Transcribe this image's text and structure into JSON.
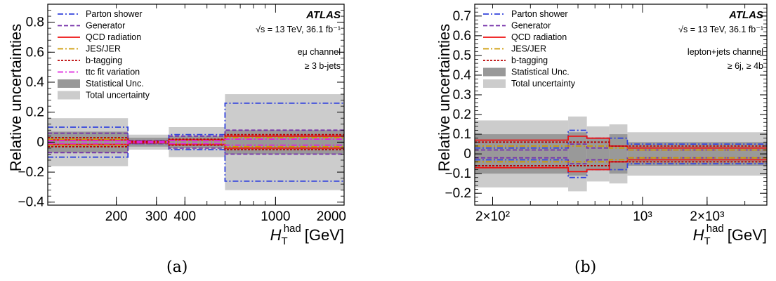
{
  "figure": {
    "caption_a": "(a)",
    "caption_b": "(b)"
  },
  "chart_data": [
    {
      "type": "band",
      "panel": "a",
      "caption": "(a)",
      "ylabel": "Relative uncertainties",
      "xlabel_main": "H",
      "xlabel_sub": "T",
      "xlabel_sup": "had",
      "xlabel_unit": "[GeV]",
      "xscale": "log",
      "xlim": [
        100,
        2000
      ],
      "ylim": [
        -0.42,
        0.92
      ],
      "x_ticks": [
        {
          "v": 200,
          "label": "200"
        },
        {
          "v": 300,
          "label": "300"
        },
        {
          "v": 400,
          "label": "400"
        },
        {
          "v": 1000,
          "label": "1000"
        },
        {
          "v": 2000,
          "label": "2000"
        }
      ],
      "y_ticks": [
        {
          "v": -0.4,
          "label": "−0.4"
        },
        {
          "v": -0.2,
          "label": "−0.2"
        },
        {
          "v": 0,
          "label": "0"
        },
        {
          "v": 0.2,
          "label": "0.2"
        },
        {
          "v": 0.4,
          "label": "0.4"
        },
        {
          "v": 0.6,
          "label": "0.6"
        },
        {
          "v": 0.8,
          "label": "0.8"
        }
      ],
      "bin_edges": [
        100,
        225,
        340,
        600,
        2000
      ],
      "total_unc": [
        0.16,
        0.05,
        0.1,
        0.32
      ],
      "stat_unc": [
        0.07,
        0.03,
        0.04,
        0.08
      ],
      "series": [
        {
          "name": "Parton shower",
          "color": "#3344dd",
          "dash": "8,3,2,3",
          "up": [
            0.1,
            0.01,
            0.05,
            0.26
          ],
          "down": [
            -0.1,
            -0.01,
            -0.05,
            -0.26
          ]
        },
        {
          "name": "Generator",
          "color": "#7733aa",
          "dash": "6,3",
          "up": [
            0.06,
            0.01,
            0.04,
            0.08
          ],
          "down": [
            -0.07,
            -0.01,
            -0.04,
            -0.08
          ]
        },
        {
          "name": "QCD radiation",
          "color": "#ee1111",
          "dash": "",
          "up": [
            0.015,
            0.005,
            0.015,
            0.04
          ],
          "down": [
            -0.015,
            -0.005,
            -0.015,
            -0.04
          ]
        },
        {
          "name": "JES/JER",
          "color": "#cc9900",
          "dash": "8,3,2,3",
          "up": [
            0.02,
            0.005,
            0.01,
            0.03
          ],
          "down": [
            -0.02,
            -0.005,
            -0.01,
            -0.03
          ]
        },
        {
          "name": "b-tagging",
          "color": "#bb0000",
          "dash": "3,2",
          "up": [
            0.03,
            0.005,
            0.02,
            0.05
          ],
          "down": [
            -0.03,
            -0.005,
            -0.02,
            -0.05
          ]
        },
        {
          "name": "ttc fit variation",
          "color": "#dd22dd",
          "dash": "8,3,2,3",
          "up": [
            0.01,
            0.003,
            0.01,
            0.02
          ],
          "down": [
            -0.01,
            -0.003,
            -0.01,
            -0.02
          ]
        }
      ],
      "legend": [
        "Parton shower",
        "Generator",
        "QCD radiation",
        "JES/JER",
        "b-tagging",
        "ttc fit variation",
        "Statistical Unc.",
        "Total uncertainty"
      ],
      "atlas_label": "ATLAS",
      "energy_label": "√s = 13 TeV, 36.1 fb⁻¹",
      "channel_label": "eμ channel",
      "selection_label": "≥ 3 b-jets"
    },
    {
      "type": "band",
      "panel": "b",
      "caption": "(b)",
      "ylabel": "Relative uncertainties",
      "xlabel_main": "H",
      "xlabel_sub": "T",
      "xlabel_sup": "had",
      "xlabel_unit": "[GeV]",
      "xscale": "log",
      "xlim": [
        165,
        3800
      ],
      "ylim": [
        -0.26,
        0.76
      ],
      "x_ticks": [
        {
          "v": 200,
          "label": "2×10²"
        },
        {
          "v": 1000,
          "label": "10³"
        },
        {
          "v": 2000,
          "label": "2×10³"
        }
      ],
      "y_ticks": [
        {
          "v": -0.2,
          "label": "−0.2"
        },
        {
          "v": -0.1,
          "label": "−0.1"
        },
        {
          "v": 0,
          "label": "0"
        },
        {
          "v": 0.1,
          "label": "0.1"
        },
        {
          "v": 0.2,
          "label": "0.2"
        },
        {
          "v": 0.3,
          "label": "0.3"
        },
        {
          "v": 0.4,
          "label": "0.4"
        },
        {
          "v": 0.5,
          "label": "0.5"
        },
        {
          "v": 0.6,
          "label": "0.6"
        },
        {
          "v": 0.7,
          "label": "0.7"
        }
      ],
      "bin_edges": [
        165,
        450,
        550,
        700,
        850,
        3800
      ],
      "total_unc": [
        0.17,
        0.19,
        0.14,
        0.15,
        0.11
      ],
      "stat_unc": [
        0.1,
        0.11,
        0.08,
        0.1,
        0.06
      ],
      "series": [
        {
          "name": "Parton shower",
          "color": "#3344dd",
          "dash": "8,3,2,3",
          "up": [
            0.03,
            0.12,
            0.08,
            0.08,
            0.05
          ],
          "down": [
            -0.03,
            -0.12,
            -0.08,
            -0.08,
            -0.05
          ]
        },
        {
          "name": "Generator",
          "color": "#7733aa",
          "dash": "6,3",
          "up": [
            0.02,
            0.05,
            0.03,
            0.04,
            0.02
          ],
          "down": [
            -0.02,
            -0.05,
            -0.03,
            -0.04,
            -0.02
          ]
        },
        {
          "name": "QCD radiation",
          "color": "#ee1111",
          "dash": "",
          "up": [
            0.07,
            0.09,
            0.08,
            0.04,
            0.03
          ],
          "down": [
            -0.07,
            -0.09,
            -0.08,
            -0.04,
            -0.03
          ]
        },
        {
          "name": "JES/JER",
          "color": "#cc9900",
          "dash": "8,3,2,3",
          "up": [
            0.04,
            0.04,
            0.04,
            0.03,
            0.02
          ],
          "down": [
            -0.04,
            -0.04,
            -0.04,
            -0.03,
            -0.02
          ]
        },
        {
          "name": "b-tagging",
          "color": "#bb0000",
          "dash": "3,2",
          "up": [
            0.06,
            0.06,
            0.06,
            0.04,
            0.04
          ],
          "down": [
            -0.06,
            -0.06,
            -0.06,
            -0.04,
            -0.04
          ]
        }
      ],
      "legend": [
        "Parton shower",
        "Generator",
        "QCD radiation",
        "JES/JER",
        "b-tagging",
        "Statistical Unc.",
        "Total uncertainty"
      ],
      "atlas_label": "ATLAS",
      "energy_label": "√s = 13 TeV, 36.1 fb⁻¹",
      "channel_label": "lepton+jets channel",
      "selection_label": "≥ 6j, ≥ 4b"
    }
  ]
}
